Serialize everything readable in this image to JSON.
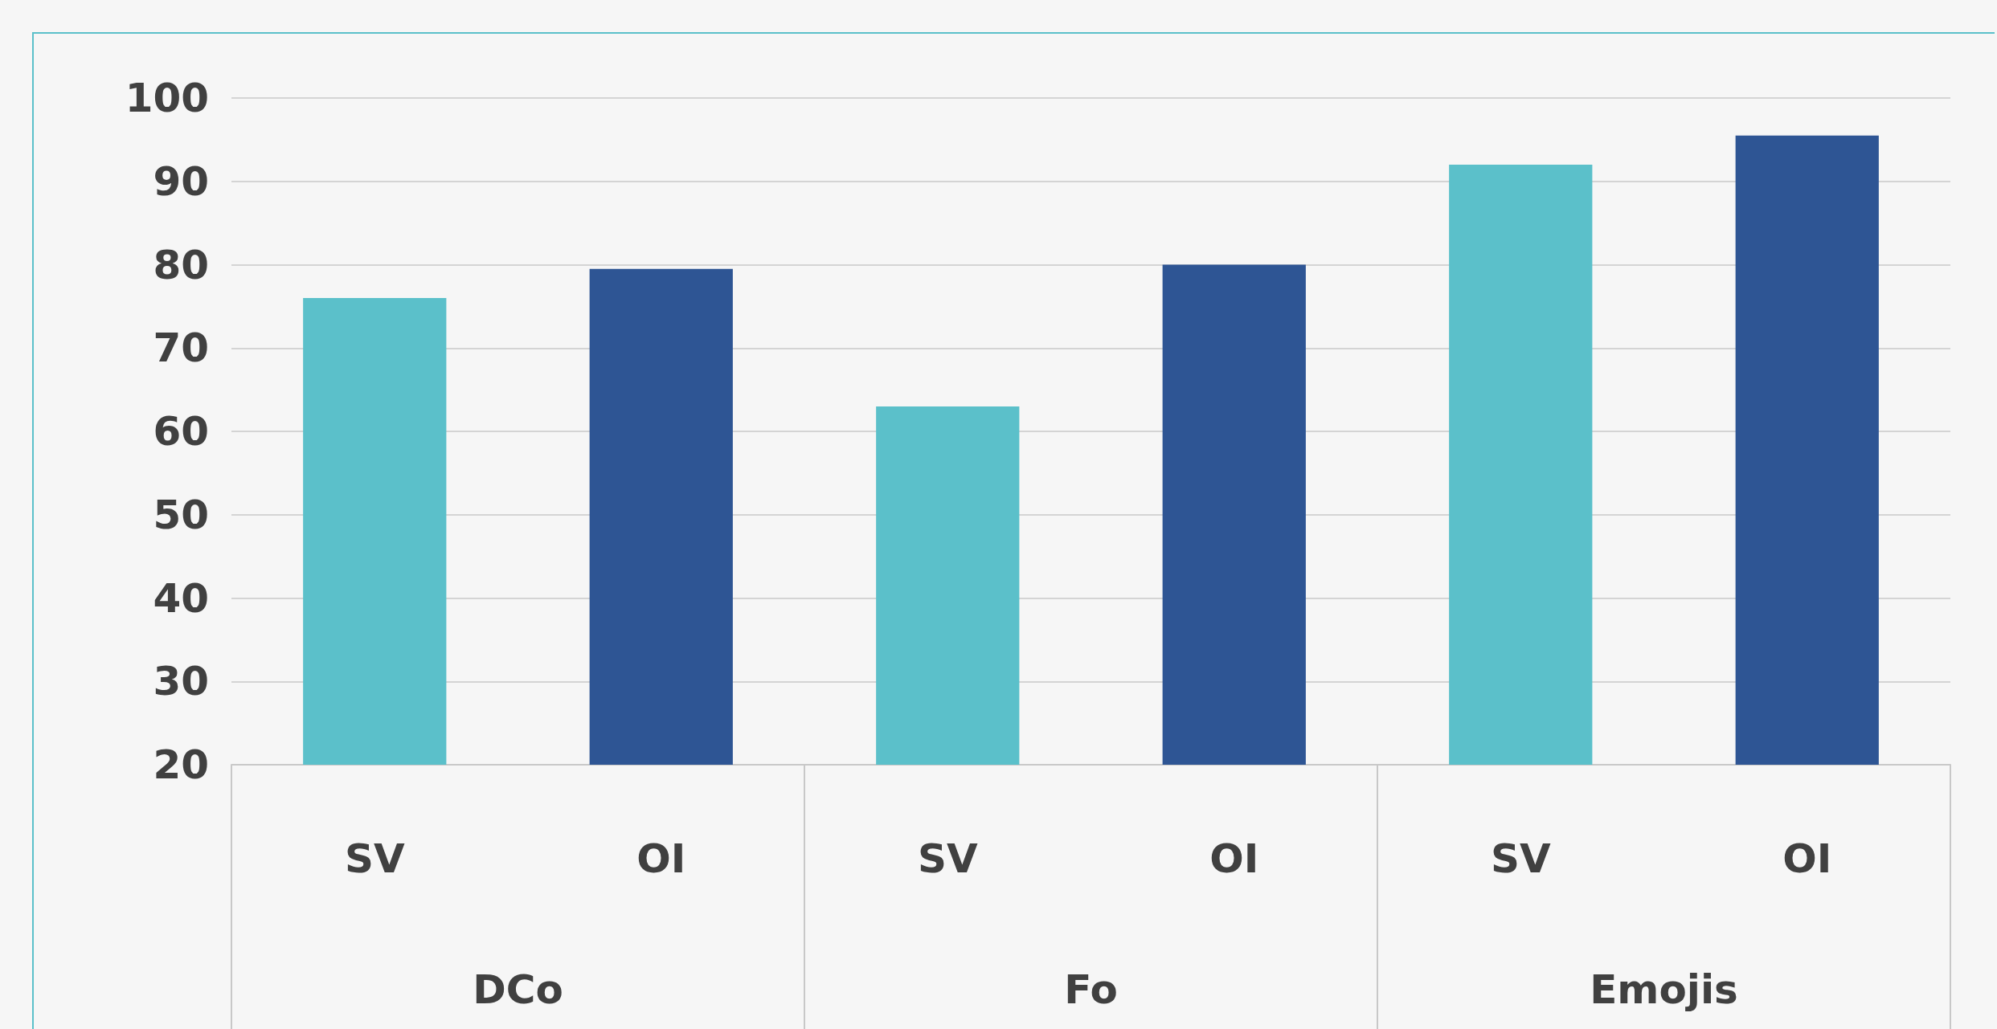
{
  "chart_data": {
    "type": "bar",
    "categories": [
      "DCo",
      "Fo",
      "Emojis"
    ],
    "series": [
      {
        "name": "SV",
        "color": "#5bc0ca",
        "values": [
          76,
          63,
          92
        ]
      },
      {
        "name": "OI",
        "color": "#2e5594",
        "values": [
          79.5,
          80,
          95.5
        ]
      }
    ],
    "ylim": [
      20,
      100
    ],
    "yticks": [
      20,
      30,
      40,
      50,
      60,
      70,
      80,
      90,
      100
    ],
    "grid": "y"
  }
}
